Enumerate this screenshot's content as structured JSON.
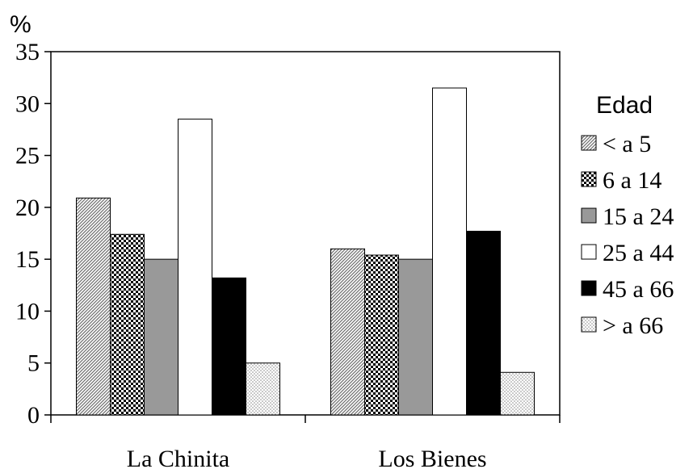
{
  "chart_data": {
    "type": "bar",
    "title": "",
    "xlabel": "",
    "ylabel": "%",
    "ylim": [
      0,
      35
    ],
    "yticks": [
      0,
      5,
      10,
      15,
      20,
      25,
      30,
      35
    ],
    "grid": false,
    "legend_placement": "right",
    "legend_title": "Edad",
    "categories": [
      "La Chinita",
      "Los Bienes"
    ],
    "series": [
      {
        "name": "< a 5",
        "values": [
          20.9,
          16.0
        ],
        "pattern": "diagonal-hatch"
      },
      {
        "name": "6 a 14",
        "values": [
          17.4,
          15.4
        ],
        "pattern": "checker"
      },
      {
        "name": "15 a 24",
        "values": [
          15.0,
          15.0
        ],
        "pattern": "gray",
        "color": "#999999"
      },
      {
        "name": "25 a 44",
        "values": [
          28.5,
          31.5
        ],
        "pattern": "white",
        "color": "#ffffff"
      },
      {
        "name": "45 a 66",
        "values": [
          13.2,
          17.7
        ],
        "pattern": "black",
        "color": "#000000"
      },
      {
        "name": "> a 66",
        "values": [
          5.0,
          4.1
        ],
        "pattern": "dots"
      }
    ]
  }
}
